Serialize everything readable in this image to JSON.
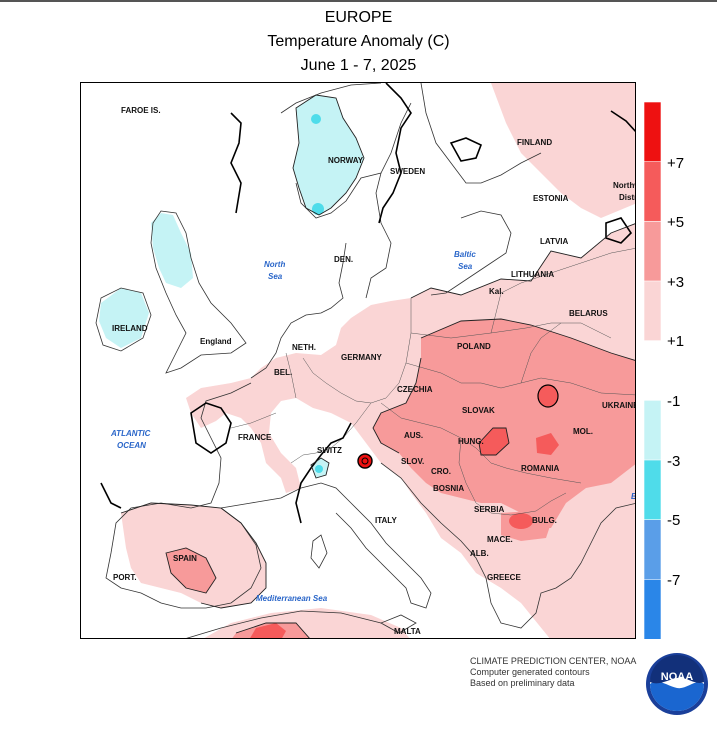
{
  "header": {
    "title": "EUROPE",
    "subtitle": "Temperature Anomaly (C)",
    "dates": "June 1 - 7, 2025"
  },
  "legend": {
    "ticks": [
      "+7",
      "+5",
      "+3",
      "+1",
      "-1",
      "-3",
      "-5",
      "-7"
    ],
    "colors": [
      "#ee1111",
      "#f55b5b",
      "#f79a9a",
      "#fad5d5",
      "#ffffff",
      "#c5f3f5",
      "#4fdcea",
      "#5a9ee8",
      "#2a86e8"
    ]
  },
  "map": {
    "labels": {
      "faroe": "FAROE IS.",
      "finland": "FINLAND",
      "norway": "NORWAY",
      "sweden": "SWEDEN",
      "estonia": "ESTONIA",
      "latvia": "LATVIA",
      "lithuania": "LITHUANIA",
      "northwest": "Northw",
      "district": "Distri",
      "den": "DEN.",
      "kal": "Kal.",
      "belarus": "BELARUS",
      "ireland": "IRELAND",
      "england": "England",
      "neth": "NETH.",
      "germany": "GERMANY",
      "poland": "POLAND",
      "bel": "BEL.",
      "czechia": "CZECHIA",
      "slovak": "SLOVAK",
      "ukraine": "UKRAINE",
      "france": "FRANCE",
      "switz": "SWITZ",
      "aus": "AUS.",
      "hung": "HUNG.",
      "mol": "MOL.",
      "slov": "SLOV.",
      "cro": "CRO.",
      "romania": "ROMANIA",
      "bosnia": "BOSNIA",
      "serbia": "SERBIA",
      "italy": "ITALY",
      "bulg": "BULG.",
      "mace": "MACE.",
      "alb": "ALB.",
      "spain": "SPAIN",
      "port": "PORT.",
      "greece": "GREECE",
      "malta": "MALTA"
    },
    "seas": {
      "north_1": "North",
      "north_2": "Sea",
      "baltic_1": "Baltic",
      "baltic_2": "Sea",
      "atlantic_1": "ATLANTIC",
      "atlantic_2": "OCEAN",
      "med": "Mediterranean Sea",
      "black": "B"
    }
  },
  "footer": {
    "line1": "CLIMATE PREDICTION CENTER, NOAA",
    "line2": "Computer generated contours",
    "line3": "Based on preliminary data",
    "logo_text": "NOAA"
  }
}
